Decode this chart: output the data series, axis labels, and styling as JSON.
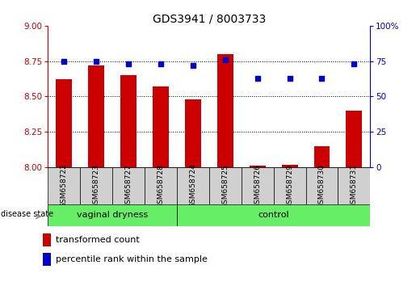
{
  "title": "GDS3941 / 8003733",
  "samples": [
    "GSM658722",
    "GSM658723",
    "GSM658727",
    "GSM658728",
    "GSM658724",
    "GSM658725",
    "GSM658726",
    "GSM658729",
    "GSM658730",
    "GSM658731"
  ],
  "red_values": [
    8.62,
    8.72,
    8.65,
    8.57,
    8.48,
    8.8,
    8.01,
    8.02,
    8.15,
    8.4
  ],
  "blue_values": [
    75,
    75,
    73,
    73,
    72,
    76,
    63,
    63,
    63,
    73
  ],
  "ylim_left": [
    8.0,
    9.0
  ],
  "ylim_right": [
    0,
    100
  ],
  "yticks_left": [
    8.0,
    8.25,
    8.5,
    8.75,
    9.0
  ],
  "yticks_right": [
    0,
    25,
    50,
    75,
    100
  ],
  "grid_lines": [
    8.25,
    8.5,
    8.75
  ],
  "group1_label": "vaginal dryness",
  "group2_label": "control",
  "group1_count": 4,
  "group2_count": 6,
  "disease_state_label": "disease state",
  "legend_red": "transformed count",
  "legend_blue": "percentile rank within the sample",
  "red_color": "#cc0000",
  "blue_color": "#0000cc",
  "green_fill": "#66ee66",
  "sample_box_color": "#d0d0d0",
  "bar_width": 0.5,
  "title_fontsize": 10,
  "tick_fontsize": 7.5,
  "label_fontsize": 8
}
